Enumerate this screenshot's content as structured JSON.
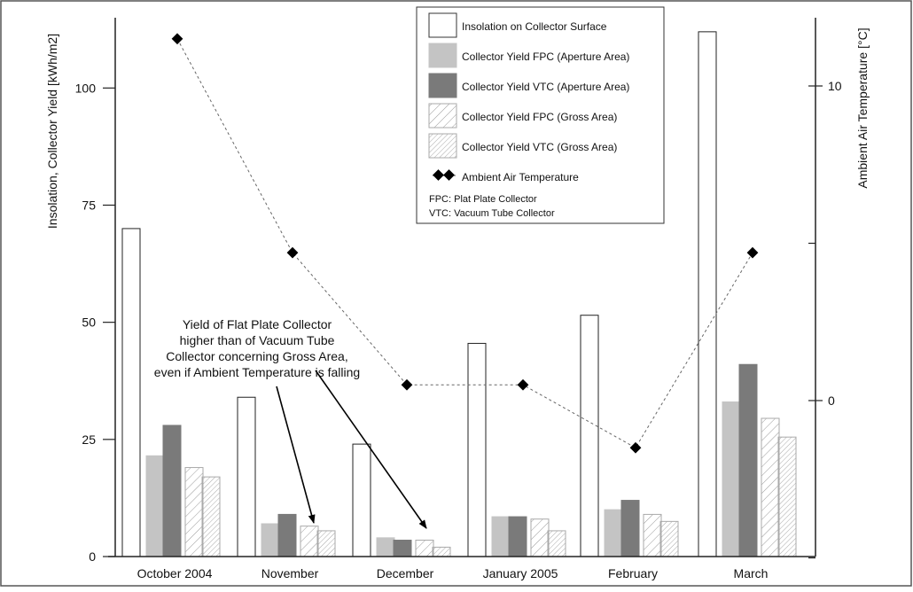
{
  "chart_data": {
    "type": "bar",
    "categories": [
      "October 2004",
      "November",
      "December",
      "January 2005",
      "February",
      "March"
    ],
    "ylabel": "Insolation, Collector Yield  [kWh/m2]",
    "y2label": "Ambient Air Temperature  [°C]",
    "ylim": [
      0,
      115
    ],
    "y2lim": [
      -5,
      12
    ],
    "yticks": [
      "0",
      "25",
      "50",
      "75",
      "100"
    ],
    "y2ticks": [
      "0",
      "10"
    ],
    "grid": false,
    "legend_position": "top-right",
    "series": [
      {
        "name": "Insolation on Collector Surface",
        "values": [
          70,
          34,
          24,
          45.5,
          51.5,
          112
        ],
        "fill": "#ffffff",
        "pattern": "none"
      },
      {
        "name": "Collector Yield FPC (Aperture Area)",
        "values": [
          21.5,
          7,
          4,
          8.5,
          10,
          33
        ],
        "fill": "#c4c4c4",
        "pattern": "none"
      },
      {
        "name": "Collector Yield VTC (Aperture Area)",
        "values": [
          28,
          9,
          3.5,
          8.5,
          12,
          41
        ],
        "fill": "#7a7a7a",
        "pattern": "none"
      },
      {
        "name": "Collector Yield FPC (Gross Area)",
        "values": [
          19,
          6.5,
          3.5,
          8,
          9,
          29.5
        ],
        "fill": "#ffffff",
        "pattern": "hatch-wide"
      },
      {
        "name": "Collector Yield VTC (Gross Area)",
        "values": [
          17,
          5.5,
          2,
          5.5,
          7.5,
          25.5
        ],
        "fill": "#ffffff",
        "pattern": "hatch-fine"
      }
    ],
    "line_series": {
      "name": "Ambient Air Temperature",
      "axis": "right",
      "values": [
        11.5,
        4.7,
        0.5,
        0.5,
        -1.5,
        4.7
      ]
    },
    "legend_notes": [
      "FPC: Plat Plate Collector",
      "VTC: Vacuum Tube Collector"
    ],
    "annotation": {
      "lines": [
        "Yield of Flat Plate Collector",
        "higher than of Vacuum Tube",
        "Collector concerning Gross Area,",
        "even if Ambient Temperature is falling"
      ],
      "targets": [
        {
          "category": "November",
          "series": "Collector Yield FPC (Gross Area)"
        },
        {
          "category": "December",
          "series": "Collector Yield FPC (Gross Area)"
        }
      ]
    }
  }
}
